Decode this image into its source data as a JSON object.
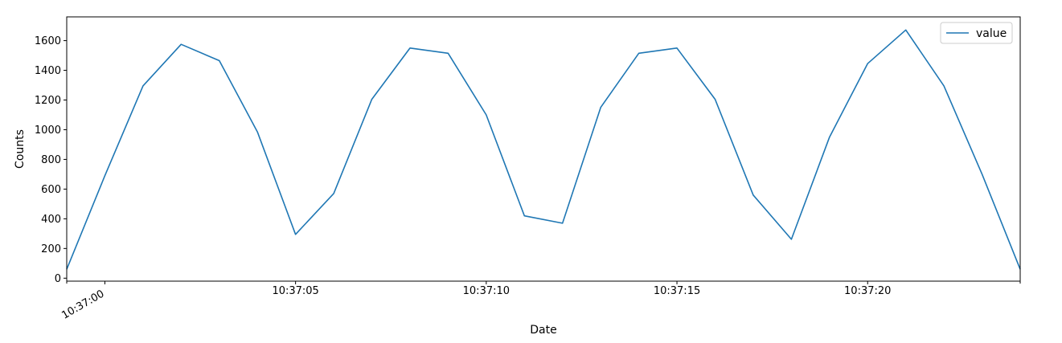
{
  "chart_data": {
    "type": "line",
    "xlabel": "Date",
    "ylabel": "Counts",
    "x_tick_labels": [
      "10:37:00",
      "10:37:05",
      "10:37:10",
      "10:37:15",
      "10:37:20"
    ],
    "y_ticks": [
      0,
      200,
      400,
      600,
      800,
      1000,
      1200,
      1400,
      1600
    ],
    "ylim": [
      -20,
      1760
    ],
    "legend_position": "upper-right",
    "grid": false,
    "x": [
      "10:36:59",
      "10:37:00",
      "10:37:01",
      "10:37:02",
      "10:37:03",
      "10:37:04",
      "10:37:05",
      "10:37:06",
      "10:37:07",
      "10:37:08",
      "10:37:09",
      "10:37:10",
      "10:37:11",
      "10:37:12",
      "10:37:13",
      "10:37:14",
      "10:37:15",
      "10:37:16",
      "10:37:17",
      "10:37:18",
      "10:37:19",
      "10:37:20",
      "10:37:21",
      "10:37:22",
      "10:37:23",
      "10:37:24"
    ],
    "series": [
      {
        "name": "value",
        "color": "#1f77b4",
        "values": [
          60,
          690,
          1295,
          1575,
          1465,
          985,
          295,
          570,
          1205,
          1550,
          1515,
          1100,
          420,
          370,
          1150,
          1515,
          1550,
          1205,
          560,
          262,
          950,
          1445,
          1672,
          1295,
          700,
          60
        ]
      }
    ]
  }
}
